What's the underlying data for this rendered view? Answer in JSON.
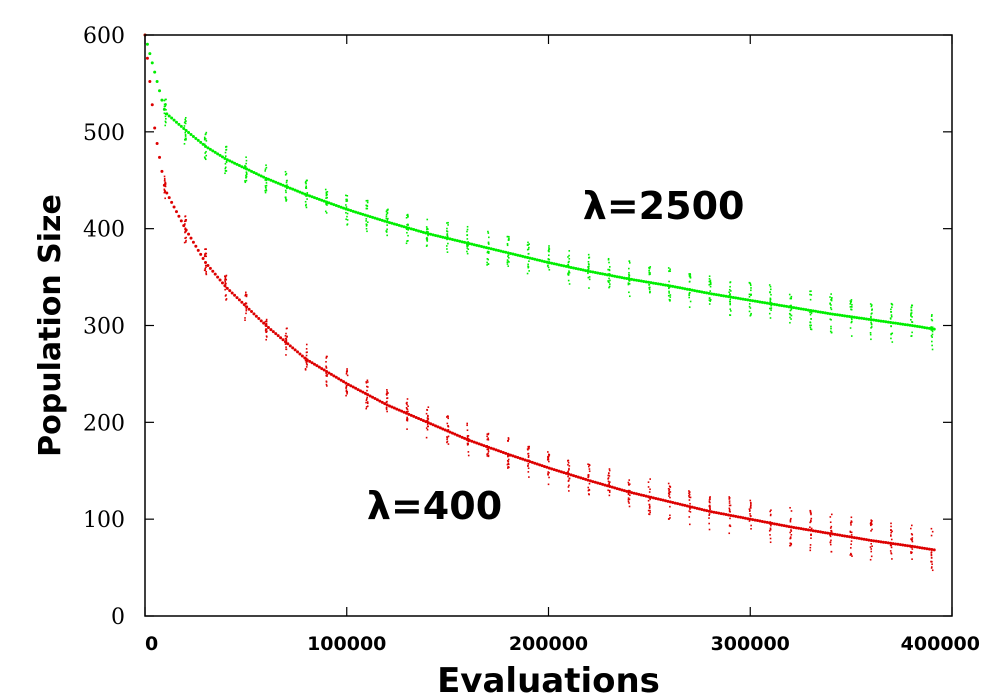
{
  "chart_data": {
    "type": "scatter",
    "title": "",
    "xlabel": "Evaluations",
    "ylabel": "Population Size",
    "xlim": [
      0,
      400000
    ],
    "ylim": [
      0,
      600
    ],
    "xticks": [
      0,
      100000,
      200000,
      300000,
      400000
    ],
    "yticks": [
      0,
      100,
      200,
      300,
      400,
      500,
      600
    ],
    "grid": false,
    "legend": "none",
    "series": [
      {
        "name": "λ=2500",
        "color": "#00ee00",
        "x": [
          0,
          10000,
          20000,
          30000,
          40000,
          60000,
          80000,
          100000,
          120000,
          140000,
          160000,
          180000,
          200000,
          220000,
          240000,
          260000,
          280000,
          300000,
          320000,
          340000,
          360000,
          380000,
          392000
        ],
        "y": [
          600,
          520,
          502,
          485,
          472,
          452,
          435,
          420,
          407,
          395,
          385,
          375,
          365,
          356,
          348,
          341,
          333,
          326,
          319,
          312,
          306,
          300,
          296
        ]
      },
      {
        "name": "λ=400",
        "color": "#dd0000",
        "x": [
          0,
          5000,
          10000,
          20000,
          30000,
          40000,
          50000,
          60000,
          80000,
          100000,
          120000,
          140000,
          160000,
          180000,
          200000,
          220000,
          240000,
          260000,
          280000,
          300000,
          320000,
          340000,
          360000,
          380000,
          392000
        ],
        "y": [
          600,
          500,
          440,
          400,
          365,
          340,
          320,
          300,
          265,
          240,
          218,
          200,
          182,
          167,
          153,
          140,
          128,
          118,
          108,
          100,
          92,
          85,
          78,
          72,
          68
        ]
      }
    ],
    "annotations": [
      {
        "text": "λ=2500",
        "x": 217000,
        "y": 410
      },
      {
        "text": "λ=400",
        "x": 110000,
        "y": 100
      }
    ]
  }
}
